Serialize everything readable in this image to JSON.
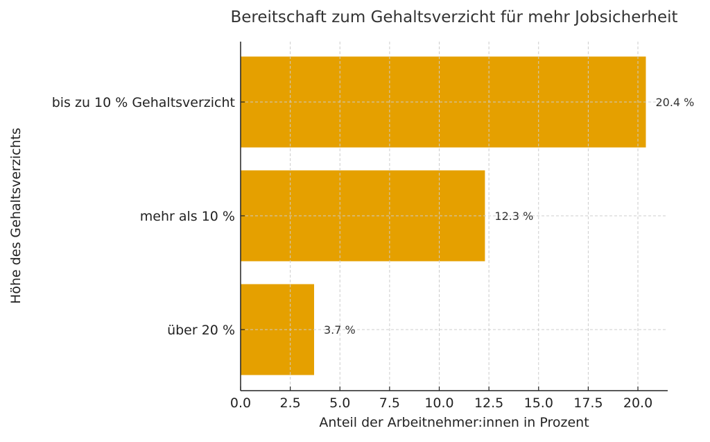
{
  "chart_data": {
    "type": "bar",
    "orientation": "horizontal",
    "title": "Bereitschaft zum Gehaltsverzicht für mehr Jobsicherheit",
    "xlabel": "Anteil der Arbeitnehmer:innen in Prozent",
    "ylabel": "Höhe des Gehaltsverzichts",
    "categories": [
      "bis zu 10 % Gehaltsverzicht",
      "mehr als 10 %",
      "über 20 %"
    ],
    "values": [
      20.4,
      12.3,
      3.7
    ],
    "data_labels": [
      "20.4 %",
      "12.3 %",
      "3.7 %"
    ],
    "xlim": [
      0,
      21.5
    ],
    "xticks": [
      0.0,
      2.5,
      5.0,
      7.5,
      10.0,
      12.5,
      15.0,
      17.5,
      20.0
    ],
    "xtick_labels": [
      "0.0",
      "2.5",
      "5.0",
      "7.5",
      "10.0",
      "12.5",
      "15.0",
      "17.5",
      "20.0"
    ],
    "grid": true,
    "bar_color": "#E5A000"
  }
}
